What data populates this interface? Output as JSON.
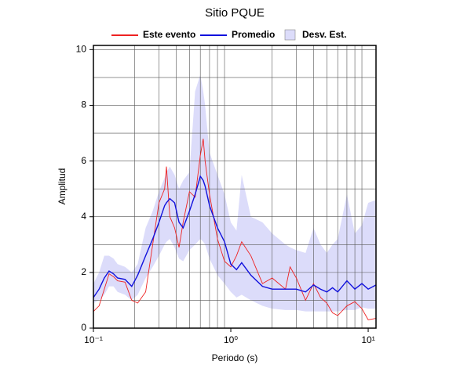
{
  "chart_data": {
    "type": "line",
    "title": "Sitio PQUE",
    "xlabel": "Periodo (s)",
    "ylabel": "Amplitud",
    "xscale": "log",
    "grid": true,
    "xlim": [
      0.1,
      11.4
    ],
    "ylim": [
      0,
      10.15
    ],
    "xticks": [
      {
        "value": 0.1,
        "label": "10⁻¹"
      },
      {
        "value": 1,
        "label": "10⁰"
      },
      {
        "value": 10,
        "label": "10¹"
      }
    ],
    "xminor": [
      0.2,
      0.3,
      0.4,
      0.5,
      0.6,
      0.7,
      0.8,
      0.9,
      2,
      3,
      4,
      5,
      6,
      7,
      8,
      9
    ],
    "yticks": [
      0,
      2,
      4,
      6,
      8,
      10
    ],
    "yminor": [
      1,
      3,
      5,
      7,
      9
    ],
    "x": [
      0.1,
      0.11,
      0.12,
      0.13,
      0.14,
      0.15,
      0.17,
      0.19,
      0.21,
      0.24,
      0.27,
      0.3,
      0.33,
      0.34,
      0.36,
      0.39,
      0.42,
      0.45,
      0.5,
      0.55,
      0.6,
      0.63,
      0.65,
      0.7,
      0.8,
      0.9,
      1.0,
      1.1,
      1.2,
      1.4,
      1.7,
      2.0,
      2.5,
      2.7,
      3.0,
      3.5,
      4.0,
      4.5,
      5,
      5.5,
      6,
      7,
      8,
      9,
      10,
      11.4
    ],
    "series": [
      {
        "name": "Este evento",
        "color": "#ee2222",
        "values": [
          0.6,
          0.8,
          1.4,
          1.95,
          1.85,
          1.7,
          1.65,
          1.0,
          0.9,
          1.3,
          3.0,
          4.5,
          5.0,
          5.8,
          4.0,
          3.6,
          2.9,
          3.8,
          4.9,
          4.7,
          6.2,
          6.8,
          6.0,
          4.8,
          3.2,
          2.4,
          2.2,
          2.6,
          3.1,
          2.6,
          1.6,
          1.8,
          1.4,
          2.2,
          1.8,
          1.0,
          1.6,
          1.1,
          0.9,
          0.55,
          0.45,
          0.8,
          0.95,
          0.7,
          0.3,
          0.35
        ]
      },
      {
        "name": "Promedio",
        "color": "#1111dd",
        "values": [
          1.1,
          1.4,
          1.8,
          2.05,
          1.95,
          1.8,
          1.75,
          1.5,
          1.9,
          2.6,
          3.2,
          3.8,
          4.4,
          4.5,
          4.65,
          4.5,
          3.8,
          3.6,
          4.2,
          4.8,
          5.45,
          5.3,
          5.1,
          4.4,
          3.6,
          3.1,
          2.3,
          2.1,
          2.35,
          1.9,
          1.5,
          1.4,
          1.4,
          1.4,
          1.4,
          1.3,
          1.55,
          1.4,
          1.3,
          1.45,
          1.3,
          1.7,
          1.4,
          1.6,
          1.4,
          1.55
        ]
      },
      {
        "name": "Desv. Est.",
        "color": "#dcdcfa",
        "lower": [
          0.9,
          1.0,
          1.2,
          1.5,
          1.5,
          1.3,
          1.2,
          1.0,
          1.2,
          1.8,
          2.2,
          2.6,
          3.0,
          3.1,
          3.2,
          2.9,
          2.5,
          2.4,
          2.8,
          3.0,
          3.2,
          3.1,
          3.0,
          2.5,
          1.9,
          1.6,
          1.3,
          1.1,
          1.2,
          1.0,
          0.8,
          0.7,
          0.65,
          0.65,
          0.65,
          0.6,
          0.6,
          0.6,
          0.6,
          0.6,
          0.6,
          0.65,
          0.65,
          0.75,
          0.7,
          0.7
        ],
        "upper": [
          1.6,
          2.0,
          2.6,
          2.6,
          2.5,
          2.3,
          2.2,
          2.0,
          2.3,
          3.6,
          4.2,
          4.9,
          5.4,
          5.6,
          5.8,
          5.5,
          5.0,
          5.3,
          5.6,
          8.5,
          9.1,
          8.5,
          8.0,
          6.3,
          5.5,
          4.8,
          3.8,
          3.5,
          5.5,
          4.0,
          3.8,
          3.4,
          3.0,
          2.9,
          2.8,
          2.7,
          3.6,
          3.0,
          2.7,
          3.0,
          3.2,
          4.8,
          3.4,
          3.7,
          4.5,
          4.6
        ]
      }
    ]
  }
}
